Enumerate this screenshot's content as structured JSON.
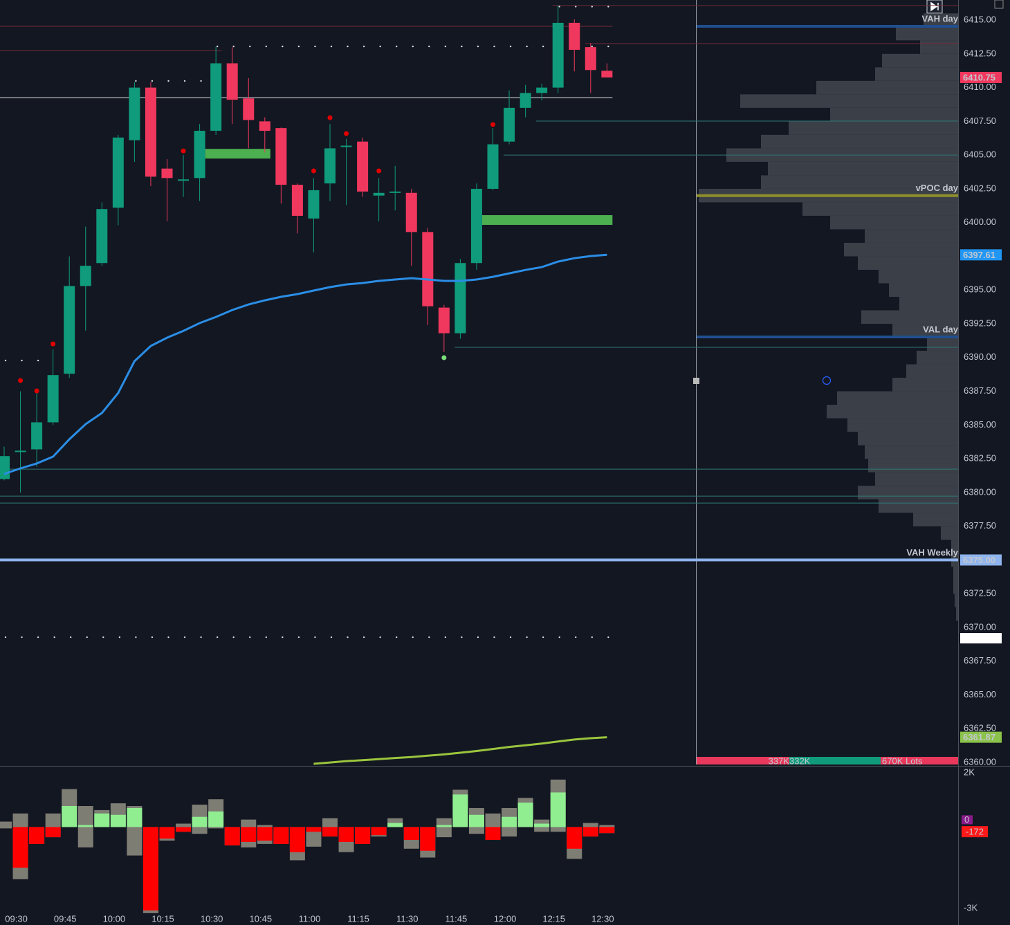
{
  "chart_data": [
    {
      "type": "candlestick",
      "categories": [
        null,
        "09:30",
        null,
        null,
        "09:45",
        null,
        null,
        "10:00",
        null,
        null,
        "10:15",
        null,
        null,
        "10:30",
        null,
        null,
        "10:45",
        null,
        null,
        "11:00",
        null,
        null,
        "11:15",
        null,
        null,
        "11:30",
        null,
        null,
        "11:45",
        null,
        null,
        "12:00",
        null,
        null,
        "12:15",
        null,
        null,
        "12:30"
      ],
      "open": [
        6381.0,
        6383.0,
        6383.2,
        6385.2,
        6388.8,
        6395.3,
        6397.0,
        6401.1,
        6406.1,
        6410.0,
        6404.0,
        6403.1,
        6403.3,
        6406.8,
        6411.8,
        6409.2,
        6407.5,
        6407.0,
        6402.8,
        6400.3,
        6402.9,
        6405.6,
        6406.0,
        6402.0,
        6402.3,
        6402.2,
        6399.3,
        6393.7,
        6391.8,
        6397.0,
        6402.5,
        6406.0,
        6408.5,
        6409.6,
        6410.0,
        6414.8,
        6413.0,
        6411.25
      ],
      "high": [
        6383.4,
        6387.5,
        6387.5,
        6390.6,
        6397.5,
        6399.7,
        6401.5,
        6406.5,
        6410.4,
        6410.4,
        6404.7,
        6405.0,
        6407.3,
        6413.0,
        6413.0,
        6410.7,
        6407.8,
        6407.05,
        6402.9,
        6403.3,
        6407.3,
        6406.2,
        6406.3,
        6403.3,
        6404.2,
        6402.5,
        6399.6,
        6393.9,
        6397.3,
        6402.9,
        6407.0,
        6409.8,
        6410.2,
        6410.3,
        6416.1,
        6415.05,
        6413.3,
        6411.8
      ],
      "low": [
        6380.9,
        6380.0,
        6381.9,
        6385.0,
        6388.5,
        6392.0,
        6396.8,
        6399.8,
        6404.5,
        6402.7,
        6400.1,
        6401.9,
        6401.6,
        6406.5,
        6407.3,
        6405.5,
        6405.2,
        6401.4,
        6399.2,
        6397.8,
        6401.6,
        6401.3,
        6401.9,
        6400.1,
        6400.9,
        6396.8,
        6392.4,
        6390.4,
        6391.4,
        6396.5,
        6402.4,
        6405.8,
        6407.8,
        6409.05,
        6409.6,
        6411.2,
        6409.6,
        6410.75
      ],
      "close": [
        6382.7,
        6383.1,
        6385.2,
        6388.7,
        6395.3,
        6396.8,
        6401.0,
        6406.3,
        6410.0,
        6403.4,
        6403.3,
        6403.2,
        6406.8,
        6411.8,
        6409.1,
        6407.6,
        6406.8,
        6402.8,
        6400.5,
        6402.4,
        6405.5,
        6405.7,
        6402.3,
        6402.2,
        6402.3,
        6399.3,
        6393.8,
        6391.8,
        6397.0,
        6402.5,
        6405.8,
        6408.5,
        6409.6,
        6410.0,
        6414.8,
        6412.8,
        6411.3,
        6410.75
      ],
      "up_color": "#0f9b7c",
      "down_color": "#f0385e",
      "series": [
        {
          "color": "#2b8ee6",
          "values": [
            6381.38,
            6381.79,
            6382.15,
            6382.66,
            6383.94,
            6385.07,
            6385.89,
            6387.37,
            6389.73,
            6390.86,
            6391.47,
            6391.98,
            6392.55,
            6393.01,
            6393.52,
            6393.93,
            6394.24,
            6394.5,
            6394.7,
            6394.96,
            6395.22,
            6395.42,
            6395.52,
            6395.68,
            6395.78,
            6395.88,
            6395.78,
            6395.68,
            6395.68,
            6395.78,
            6395.98,
            6396.24,
            6396.49,
            6396.7,
            6397.11,
            6397.36,
            6397.52,
            6397.61
          ]
        },
        {
          "color": "#9bc53d",
          "values": [
            null,
            null,
            null,
            null,
            null,
            null,
            null,
            null,
            null,
            null,
            null,
            null,
            null,
            null,
            null,
            null,
            null,
            null,
            null,
            6359.9,
            6360.0,
            6360.1,
            6360.17,
            6360.25,
            6360.33,
            6360.4,
            6360.5,
            6360.6,
            6360.72,
            6360.85,
            6361.0,
            6361.15,
            6361.27,
            6361.4,
            6361.55,
            6361.7,
            6361.8,
            6361.87
          ]
        }
      ],
      "markers": [
        {
          "color": "#e00000",
          "values": [
            null,
            6388.3,
            6387.53,
            6391.01,
            null,
            null,
            null,
            null,
            null,
            null,
            null,
            6405.31,
            null,
            null,
            null,
            null,
            null,
            null,
            null,
            6403.83,
            6407.77,
            6406.59,
            null,
            6403.83,
            null,
            null,
            null,
            null,
            null,
            null,
            6407.26,
            null,
            null,
            null,
            null,
            null,
            null,
            null
          ]
        },
        {
          "color": "#7be07b",
          "values": [
            null,
            null,
            null,
            null,
            null,
            null,
            null,
            null,
            null,
            null,
            null,
            null,
            null,
            null,
            null,
            null,
            null,
            null,
            null,
            null,
            null,
            null,
            null,
            null,
            null,
            null,
            null,
            6389.99,
            null,
            null,
            null,
            null,
            null,
            null,
            null,
            null,
            null,
            null
          ]
        }
      ],
      "ylim": [
        6359.85,
        6416.49
      ],
      "yticks": [
        {
          "value": 6415,
          "label": "6415.00"
        },
        {
          "value": 6412.5,
          "label": "6412.50"
        },
        {
          "value": 6410,
          "label": "6410.00"
        },
        {
          "value": 6407.5,
          "label": "6407.50"
        },
        {
          "value": 6405,
          "label": "6405.00"
        },
        {
          "value": 6402.5,
          "label": "6402.50"
        },
        {
          "value": 6400,
          "label": "6400.00"
        },
        {
          "value": 6397.5,
          "label": "6397.50"
        },
        {
          "value": 6395,
          "label": "6395.00"
        },
        {
          "value": 6392.5,
          "label": "6392.50"
        },
        {
          "value": 6390,
          "label": "6390.00"
        },
        {
          "value": 6387.5,
          "label": "6387.50"
        },
        {
          "value": 6385,
          "label": "6385.00"
        },
        {
          "value": 6382.5,
          "label": "6382.50"
        },
        {
          "value": 6380,
          "label": "6380.00"
        },
        {
          "value": 6377.5,
          "label": "6377.50"
        },
        {
          "value": 6372.5,
          "label": "6372.50"
        },
        {
          "value": 6370,
          "label": "6370.00"
        },
        {
          "value": 6367.5,
          "label": "6367.50"
        },
        {
          "value": 6365,
          "label": "6365.00"
        },
        {
          "value": 6362.5,
          "label": "6362.50"
        },
        {
          "value": 6360,
          "label": "6360.00"
        }
      ],
      "levels": [
        {
          "value": 6409.25,
          "color": "#e6e6e6",
          "from": 0,
          "to": 37
        },
        {
          "value": 6407.52,
          "color": "#2f7a7a",
          "from": 33
        },
        {
          "value": 6405.0,
          "color": "#2f7a7a",
          "from": 31
        },
        {
          "value": 6390.76,
          "color": "#2f7a7a",
          "from": 28
        },
        {
          "value": 6381.73,
          "color": "#2f7a7a",
          "from": 0
        },
        {
          "value": 6379.73,
          "color": "#2f7a7a",
          "from": 0
        },
        {
          "value": 6379.22,
          "color": "#2f7a7a",
          "from": 0
        },
        {
          "value": 6414.54,
          "color": "#7a2a3a",
          "from": 0,
          "to": 37
        },
        {
          "value": 6412.74,
          "color": "#7a2a3a",
          "from": 0,
          "to": 13
        },
        {
          "value": 6416.07,
          "color": "#7a2a3a",
          "from": 34
        },
        {
          "value": 6413.26,
          "color": "#7a2a3a",
          "from": 36
        }
      ],
      "zones": [
        {
          "value": 6405.1,
          "from": 12,
          "to": 16,
          "color": "#4caf50"
        },
        {
          "value": 6400.19,
          "from": 29,
          "to": 37,
          "color": "#4caf50"
        }
      ],
      "dotted_levels": [
        {
          "value": 6413.05,
          "from": 13,
          "to": 37
        },
        {
          "value": 6410.49,
          "from": 8,
          "to": 12
        },
        {
          "value": 6416.0,
          "from": 34,
          "to": 37
        },
        {
          "value": 6389.78,
          "from": 0,
          "to": 2
        },
        {
          "value": 6369.28,
          "from": 0,
          "to": 37
        }
      ],
      "key_levels": [
        {
          "text": "VAH day",
          "value": 6414.54,
          "color": "#1f4f8f",
          "text_color": "#c8ccd4",
          "full": false
        },
        {
          "text": "vPOC day",
          "value": 6402.0,
          "color": "#8f8f2a",
          "text_color": "#c8ccd4",
          "full": false
        },
        {
          "text": "VAL day",
          "value": 6391.53,
          "color": "#1f4f8f",
          "text_color": "#c8ccd4",
          "full": false
        },
        {
          "text": "VAH Weekly",
          "value": 6375.0,
          "color": "#8fb4ee",
          "text_color": "#e8e84a",
          "full": true
        }
      ],
      "price_labels": [
        {
          "value": 6410.75,
          "color": "#f0385e"
        },
        {
          "value": 6397.61,
          "color": "#2196f3"
        },
        {
          "value": 6375,
          "label": "6375.00",
          "color": "#8fb4ee"
        },
        {
          "value": 6361.87,
          "color": "#8bc34a"
        }
      ],
      "profile": {
        "color": "#3b3f47",
        "prices": [
          6415,
          6414,
          6413,
          6412,
          6411,
          6410,
          6409,
          6408,
          6407,
          6406,
          6405,
          6404,
          6403,
          6402,
          6401,
          6400,
          6399,
          6398,
          6397,
          6396,
          6395,
          6394,
          6393,
          6392,
          6391,
          6390,
          6389,
          6388,
          6387,
          6386,
          6385,
          6384,
          6383,
          6382,
          6381,
          6380,
          6379,
          6378,
          6377,
          6376,
          6375,
          6374,
          6373,
          6372,
          6371
        ],
        "volumes": [
          50,
          90,
          55,
          110,
          120,
          205,
          315,
          185,
          245,
          285,
          335,
          275,
          285,
          375,
          225,
          185,
          135,
          165,
          145,
          115,
          100,
          85,
          140,
          95,
          45,
          60,
          75,
          95,
          175,
          190,
          160,
          145,
          135,
          130,
          120,
          145,
          115,
          65,
          25,
          10,
          10,
          7,
          7,
          5,
          3
        ]
      },
      "volume_split": {
        "sell": {
          "value": 337000,
          "label": "337K"
        },
        "buy": {
          "value": 332000,
          "label": "332K"
        },
        "total": {
          "value": 670000,
          "label": "670K Lots"
        }
      }
    },
    {
      "type": "bar",
      "values": [
        0,
        -1500,
        -625,
        -375,
        775,
        75,
        500,
        450,
        700,
        -3075,
        -425,
        -175,
        375,
        575,
        -675,
        -550,
        -500,
        -625,
        -925,
        -175,
        -350,
        -550,
        -625,
        -300,
        150,
        -475,
        -875,
        75,
        1200,
        450,
        -475,
        375,
        900,
        125,
        1275,
        -800,
        -350,
        -225
      ],
      "high": [
        200,
        500,
        0,
        500,
        1400,
        775,
        625,
        875,
        775,
        0,
        0,
        125,
        825,
        1025,
        0,
        275,
        75,
        0,
        0,
        0,
        325,
        0,
        0,
        0,
        325,
        0,
        0,
        325,
        1375,
        700,
        500,
        700,
        1075,
        275,
        1750,
        0,
        150,
        75
      ],
      "low": [
        -50,
        -1925,
        -625,
        -375,
        0,
        -750,
        0,
        0,
        -1050,
        -3175,
        -500,
        -175,
        -250,
        -50,
        -675,
        -750,
        -625,
        -625,
        -1225,
        -725,
        -350,
        -925,
        -625,
        -350,
        0,
        -800,
        -1125,
        -375,
        0,
        -250,
        -475,
        -350,
        0,
        -175,
        -175,
        -1175,
        -350,
        -225
      ],
      "up_color": "#90ee90",
      "down_color": "#ff0000",
      "range_color": "#7d7d74",
      "ylim": [
        -3000,
        2000
      ],
      "yticks": [
        {
          "value": 2000,
          "label": "2K"
        },
        {
          "value": -3000,
          "label": "-3K"
        }
      ],
      "current": {
        "value": -172,
        "color": "#ff1a1a"
      },
      "zero_marker": {
        "value": 0,
        "color": "#8a1a8a"
      }
    }
  ]
}
